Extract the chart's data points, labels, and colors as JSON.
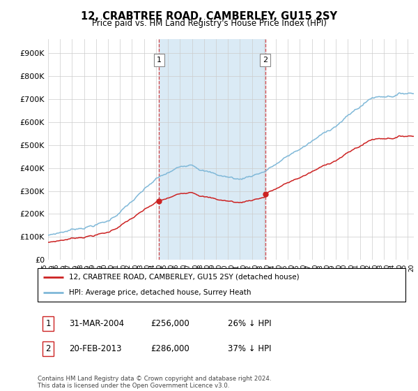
{
  "title": "12, CRABTREE ROAD, CAMBERLEY, GU15 2SY",
  "subtitle": "Price paid vs. HM Land Registry's House Price Index (HPI)",
  "ylabel_ticks": [
    "£0",
    "£100K",
    "£200K",
    "£300K",
    "£400K",
    "£500K",
    "£600K",
    "£700K",
    "£800K",
    "£900K"
  ],
  "ytick_values": [
    0,
    100000,
    200000,
    300000,
    400000,
    500000,
    600000,
    700000,
    800000,
    900000
  ],
  "ylim": [
    0,
    960000
  ],
  "legend_line1": "12, CRABTREE ROAD, CAMBERLEY, GU15 2SY (detached house)",
  "legend_line2": "HPI: Average price, detached house, Surrey Heath",
  "sale1_label": "1",
  "sale1_date": "31-MAR-2004",
  "sale1_price": "£256,000",
  "sale1_hpi": "26% ↓ HPI",
  "sale2_label": "2",
  "sale2_date": "20-FEB-2013",
  "sale2_price": "£286,000",
  "sale2_hpi": "37% ↓ HPI",
  "footer": "Contains HM Land Registry data © Crown copyright and database right 2024.\nThis data is licensed under the Open Government Licence v3.0.",
  "hpi_color": "#7fb8d8",
  "price_color": "#cc2222",
  "vline_color": "#cc2222",
  "highlight_color": "#daeaf5",
  "sale1_x_year": 2004.25,
  "sale2_x_year": 2013.12,
  "sale1_y": 256000,
  "sale2_y": 286000,
  "xmin": 1995.0,
  "xmax": 2025.5
}
